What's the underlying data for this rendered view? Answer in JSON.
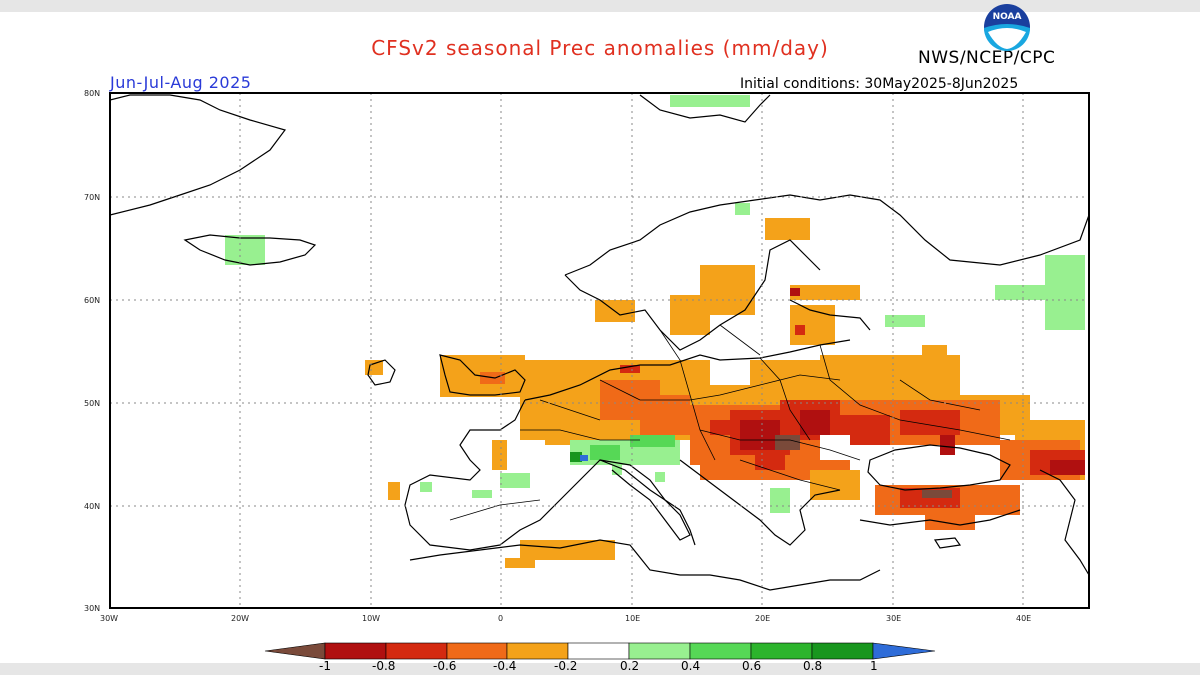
{
  "header": {
    "title": "CFSv2 seasonal Prec anomalies (mm/day)",
    "agency": "NWS/NCEP/CPC",
    "season": "Jun-Jul-Aug 2025",
    "initial_conditions": "Initial conditions: 30May2025-8Jun2025",
    "logo_text": "NOAA"
  },
  "map": {
    "lat_labels": [
      "80N",
      "70N",
      "60N",
      "50N",
      "40N",
      "30N"
    ],
    "lon_labels": [
      "30W",
      "20W",
      "10W",
      "0",
      "10E",
      "20E",
      "30E",
      "40E"
    ],
    "extent": {
      "lon_min": -30,
      "lon_max": 45,
      "lat_min": 30,
      "lat_max": 80
    },
    "grid": true,
    "colors": {
      "strong_dry": "#7a4a3a",
      "dry_08": "#b01010",
      "dry_06": "#d42a10",
      "dry_04": "#f06a18",
      "dry_02": "#f4a21a",
      "wet_02": "#98f090",
      "wet_04": "#56d856",
      "wet_06": "#2cb42c",
      "wet_08": "#18961e",
      "strong_wet": "#2e6cd8"
    }
  },
  "colorbar": {
    "labels": [
      "-1",
      "-0.8",
      "-0.6",
      "-0.4",
      "-0.2",
      "0.2",
      "0.4",
      "0.6",
      "0.8",
      "1"
    ],
    "colors": [
      "#7a4a3a",
      "#b01010",
      "#d42a10",
      "#f06a18",
      "#f4a21a",
      "#ffffff",
      "#98f090",
      "#56d856",
      "#2cb42c",
      "#18961e",
      "#2e6cd8"
    ]
  }
}
